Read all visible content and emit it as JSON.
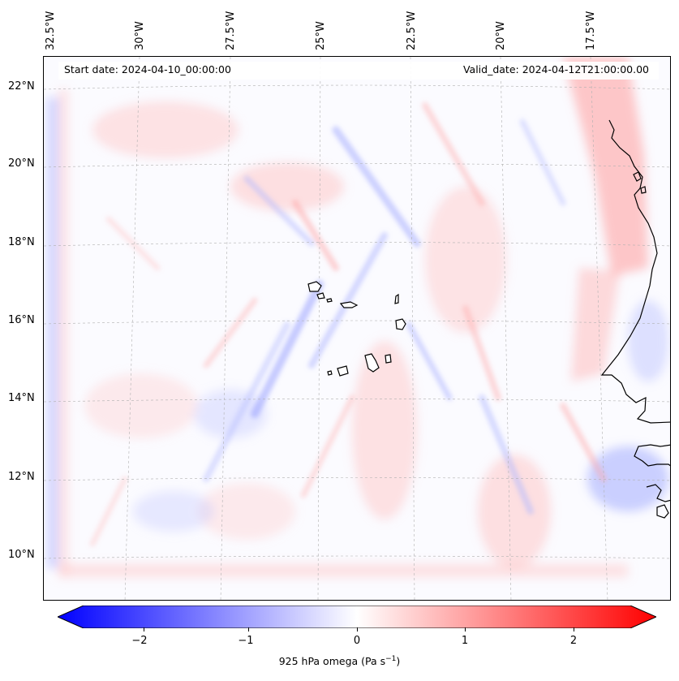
{
  "map": {
    "start_date": "Start date: 2024-04-10_00:00:00",
    "valid_date": "Valid_date: 2024-04-12T21:00:00.00",
    "longitude_labels": [
      "32.5°W",
      "30°W",
      "27.5°W",
      "25°W",
      "22.5°W",
      "20°W",
      "17.5°W"
    ],
    "latitude_labels": [
      "22°N",
      "20°N",
      "18°N",
      "16°N",
      "14°N",
      "12°N",
      "10°N"
    ],
    "features": [
      "cape-verde-islands",
      "west-african-coastline",
      "omega-field"
    ]
  },
  "colorbar": {
    "ticks": [
      "−2",
      "−1",
      "0",
      "1",
      "2"
    ],
    "label_main": "925 hPa omega (Pa s",
    "label_exp": "−1",
    "label_end": ")",
    "min_color": "#0000ff",
    "mid_color": "#ffffff",
    "max_color": "#ff0000"
  },
  "colors": {
    "coast": "#000000",
    "grid": "#b0b0b0"
  }
}
